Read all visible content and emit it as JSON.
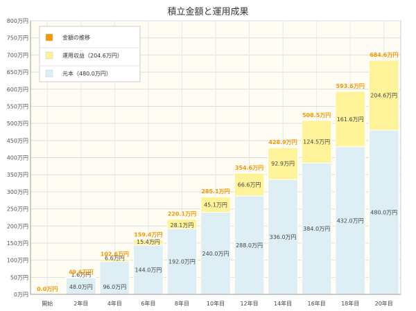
{
  "chart_data": {
    "type": "bar",
    "stacked": true,
    "title": "積立金額と運用成果",
    "categories": [
      "開始",
      "2年目",
      "4年目",
      "6年目",
      "8年目",
      "10年目",
      "12年目",
      "14年目",
      "16年目",
      "18年目",
      "20年目"
    ],
    "series": [
      {
        "name": "元本（480.0万円）",
        "color": "#deeef5",
        "values": [
          0,
          48.0,
          96.0,
          144.0,
          192.0,
          240.0,
          288.0,
          336.0,
          384.0,
          432.0,
          480.0
        ],
        "labels": [
          "",
          "48.0万円",
          "96.0万円",
          "144.0万円",
          "192.0万円",
          "240.0万円",
          "288.0万円",
          "336.0万円",
          "384.0万円",
          "432.0万円",
          "480.0万円"
        ]
      },
      {
        "name": "運用収益（204.6万円）",
        "color": "#fff39a",
        "values": [
          0,
          1.6,
          6.6,
          15.4,
          28.1,
          45.1,
          66.6,
          92.9,
          124.5,
          161.6,
          204.6
        ],
        "labels": [
          "",
          "1.6万円",
          "6.6万円",
          "15.4万円",
          "28.1万円",
          "45.1万円",
          "66.6万円",
          "92.9万円",
          "124.5万円",
          "161.6万円",
          "204.6万円"
        ]
      }
    ],
    "totals": {
      "name": "金額の推移",
      "color": "#f39800",
      "values": [
        0.0,
        49.6,
        102.6,
        159.4,
        220.1,
        285.1,
        354.6,
        428.9,
        508.5,
        593.6,
        684.6
      ],
      "labels": [
        "0.0万円",
        "49.6万円",
        "102.6万円",
        "159.4万円",
        "220.1万円",
        "285.1万円",
        "354.6万円",
        "428.9万円",
        "508.5万円",
        "593.6万円",
        "684.6万円"
      ]
    },
    "ylim": [
      0,
      800
    ],
    "yticks": [
      0,
      50,
      100,
      150,
      200,
      250,
      300,
      350,
      400,
      450,
      500,
      550,
      600,
      650,
      700,
      750,
      800
    ],
    "ytick_labels": [
      "0万円",
      "50万円",
      "100万円",
      "150万円",
      "200万円",
      "250万円",
      "300万円",
      "350万円",
      "400万円",
      "450万円",
      "500万円",
      "550万円",
      "600万円",
      "650万円",
      "700万円",
      "750万円",
      "800万円"
    ],
    "grid": true,
    "legend": "top-left"
  }
}
